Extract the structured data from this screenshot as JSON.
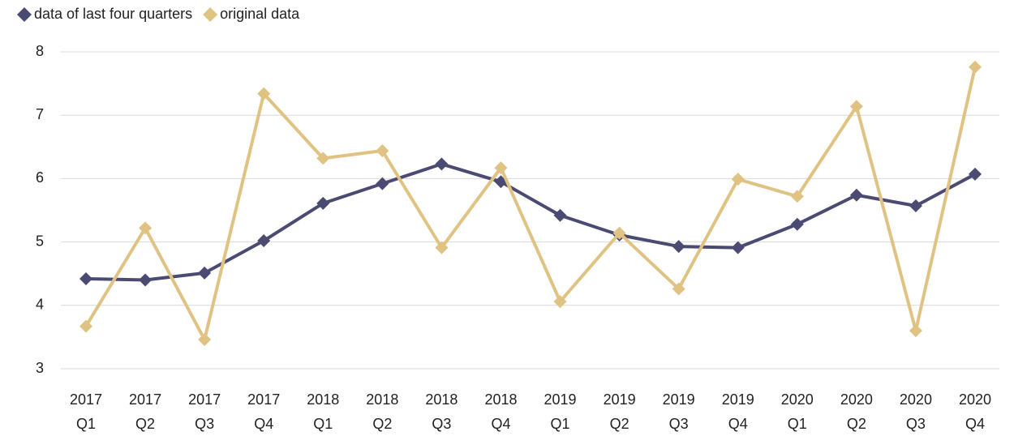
{
  "chart_data": {
    "type": "line",
    "categories": [
      "2017 Q1",
      "2017 Q2",
      "2017 Q3",
      "2017 Q4",
      "2018 Q1",
      "2018 Q2",
      "2018 Q3",
      "2018 Q4",
      "2019 Q1",
      "2019 Q2",
      "2019 Q3",
      "2019 Q4",
      "2020 Q1",
      "2020 Q2",
      "2020 Q3",
      "2020 Q4"
    ],
    "series": [
      {
        "name": "data of last four quarters",
        "color": "#4a4a72",
        "values": [
          4.42,
          4.4,
          4.51,
          5.02,
          5.61,
          5.92,
          6.23,
          5.95,
          5.42,
          5.11,
          4.93,
          4.91,
          5.28,
          5.74,
          5.57,
          6.07
        ]
      },
      {
        "name": "original data",
        "color": "#e0c382",
        "values": [
          3.67,
          5.22,
          3.46,
          7.34,
          6.32,
          6.44,
          4.91,
          6.17,
          4.06,
          5.14,
          4.26,
          5.99,
          5.72,
          7.14,
          3.6,
          7.76
        ]
      }
    ],
    "ylim": [
      3,
      8
    ],
    "yticks": [
      3,
      4,
      5,
      6,
      7,
      8
    ],
    "grid": true,
    "legend": "top-left"
  }
}
